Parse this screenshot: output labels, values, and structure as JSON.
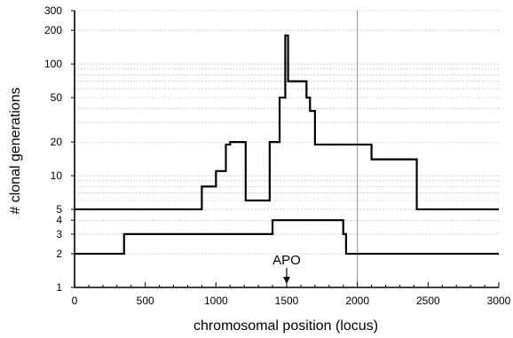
{
  "chart_data": {
    "type": "line",
    "xlabel": "chromosomal position (locus)",
    "ylabel": "# clonal generations",
    "xlim": [
      0,
      3000
    ],
    "ylim": [
      1,
      300
    ],
    "y_scale": "log",
    "grid": "horizontal dotted minor gridlines",
    "x_ticks": [
      "0",
      "500",
      "1000",
      "1500",
      "2000",
      "2500",
      "3000"
    ],
    "y_ticks": [
      "1",
      "2",
      "3",
      "4",
      "5",
      "10",
      "20",
      "50",
      "100",
      "200",
      "300"
    ],
    "reference_line_x": 2000,
    "annotation": {
      "text": "APO",
      "x": 1500
    },
    "series": [
      {
        "x": [
          0,
          900,
          900,
          1000,
          1000,
          1070,
          1070,
          1100,
          1100,
          1210,
          1210,
          1380,
          1380,
          1450,
          1450,
          1490,
          1490,
          1510,
          1510,
          1640,
          1640,
          1665,
          1665,
          1700,
          1700,
          2100,
          2100,
          2420,
          2420,
          3000
        ],
        "y": [
          5,
          5,
          8,
          8,
          11,
          11,
          19,
          19,
          20,
          20,
          6,
          6,
          20,
          20,
          50,
          50,
          180,
          180,
          70,
          70,
          50,
          50,
          38,
          38,
          19,
          19,
          14,
          14,
          5,
          5
        ]
      },
      {
        "x": [
          0,
          350,
          350,
          1400,
          1400,
          1900,
          1900,
          1920,
          1920,
          3000
        ],
        "y": [
          2,
          2,
          3,
          3,
          4,
          4,
          3,
          3,
          2,
          2
        ]
      }
    ]
  }
}
